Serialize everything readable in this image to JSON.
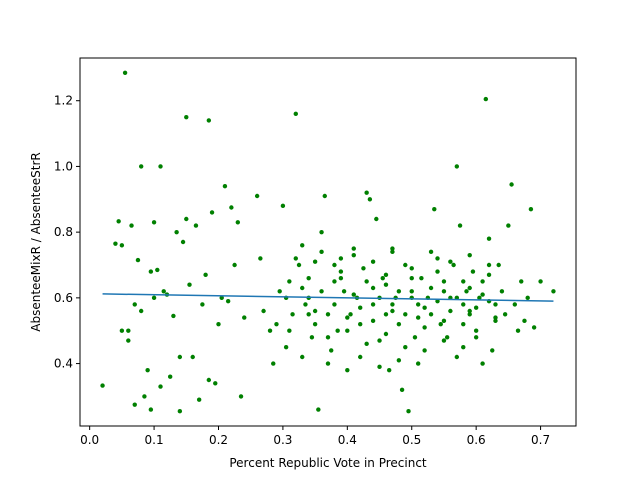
{
  "chart_data": {
    "type": "scatter",
    "xlabel": "Percent Republic Vote in Precinct",
    "ylabel": "AbsenteeMixR / AbsenteeStrR",
    "xlim": [
      -0.015,
      0.755
    ],
    "ylim": [
      0.21,
      1.33
    ],
    "xticks": [
      "0.0",
      "0.1",
      "0.2",
      "0.3",
      "0.4",
      "0.5",
      "0.6",
      "0.7"
    ],
    "yticks": [
      "0.4",
      "0.6",
      "0.8",
      "1.0",
      "1.2"
    ],
    "grid": false,
    "legend": "none",
    "colors": {
      "points": "#008000",
      "fit_line": "#1f77b4"
    },
    "trend_line": {
      "x": [
        0.02,
        0.72
      ],
      "y": [
        0.612,
        0.59
      ]
    },
    "series": [
      {
        "values": [
          [
            0.02,
            0.333
          ],
          [
            0.04,
            0.765
          ],
          [
            0.045,
            0.833
          ],
          [
            0.05,
            0.76
          ],
          [
            0.05,
            0.5
          ],
          [
            0.055,
            1.285
          ],
          [
            0.06,
            0.47
          ],
          [
            0.06,
            0.5
          ],
          [
            0.065,
            0.82
          ],
          [
            0.07,
            0.275
          ],
          [
            0.07,
            0.58
          ],
          [
            0.075,
            0.715
          ],
          [
            0.08,
            1.0
          ],
          [
            0.08,
            0.56
          ],
          [
            0.085,
            0.3
          ],
          [
            0.09,
            0.38
          ],
          [
            0.095,
            0.26
          ],
          [
            0.095,
            0.68
          ],
          [
            0.1,
            0.83
          ],
          [
            0.1,
            0.6
          ],
          [
            0.105,
            0.685
          ],
          [
            0.11,
            1.0
          ],
          [
            0.11,
            0.33
          ],
          [
            0.115,
            0.62
          ],
          [
            0.12,
            0.61
          ],
          [
            0.125,
            0.36
          ],
          [
            0.13,
            0.545
          ],
          [
            0.135,
            0.8
          ],
          [
            0.14,
            0.255
          ],
          [
            0.14,
            0.42
          ],
          [
            0.145,
            0.77
          ],
          [
            0.15,
            1.15
          ],
          [
            0.15,
            0.84
          ],
          [
            0.155,
            0.64
          ],
          [
            0.16,
            0.42
          ],
          [
            0.165,
            0.82
          ],
          [
            0.17,
            0.29
          ],
          [
            0.175,
            0.58
          ],
          [
            0.18,
            0.67
          ],
          [
            0.185,
            1.14
          ],
          [
            0.185,
            0.35
          ],
          [
            0.19,
            0.86
          ],
          [
            0.195,
            0.34
          ],
          [
            0.2,
            0.52
          ],
          [
            0.205,
            0.6
          ],
          [
            0.21,
            0.94
          ],
          [
            0.215,
            0.59
          ],
          [
            0.22,
            0.875
          ],
          [
            0.225,
            0.7
          ],
          [
            0.23,
            0.83
          ],
          [
            0.235,
            0.3
          ],
          [
            0.24,
            0.54
          ],
          [
            0.26,
            0.91
          ],
          [
            0.265,
            0.72
          ],
          [
            0.27,
            0.56
          ],
          [
            0.28,
            0.5
          ],
          [
            0.285,
            0.4
          ],
          [
            0.29,
            0.52
          ],
          [
            0.295,
            0.62
          ],
          [
            0.3,
            0.88
          ],
          [
            0.305,
            0.45
          ],
          [
            0.31,
            0.65
          ],
          [
            0.315,
            0.55
          ],
          [
            0.32,
            1.16
          ],
          [
            0.325,
            0.7
          ],
          [
            0.33,
            0.76
          ],
          [
            0.335,
            0.58
          ],
          [
            0.34,
            0.6
          ],
          [
            0.345,
            0.48
          ],
          [
            0.35,
            0.71
          ],
          [
            0.355,
            0.26
          ],
          [
            0.36,
            0.8
          ],
          [
            0.365,
            0.91
          ],
          [
            0.37,
            0.55
          ],
          [
            0.375,
            0.44
          ],
          [
            0.38,
            0.65
          ],
          [
            0.385,
            0.5
          ],
          [
            0.39,
            0.72
          ],
          [
            0.395,
            0.62
          ],
          [
            0.4,
            0.38
          ],
          [
            0.405,
            0.55
          ],
          [
            0.41,
            0.75
          ],
          [
            0.415,
            0.6
          ],
          [
            0.42,
            0.52
          ],
          [
            0.425,
            0.69
          ],
          [
            0.43,
            0.92
          ],
          [
            0.435,
            0.9
          ],
          [
            0.44,
            0.58
          ],
          [
            0.445,
            0.84
          ],
          [
            0.45,
            0.47
          ],
          [
            0.455,
            0.66
          ],
          [
            0.46,
            0.55
          ],
          [
            0.465,
            0.38
          ],
          [
            0.47,
            0.74
          ],
          [
            0.475,
            0.6
          ],
          [
            0.48,
            0.52
          ],
          [
            0.485,
            0.32
          ],
          [
            0.49,
            0.7
          ],
          [
            0.495,
            0.255
          ],
          [
            0.5,
            0.62
          ],
          [
            0.505,
            0.48
          ],
          [
            0.51,
            0.58
          ],
          [
            0.515,
            0.66
          ],
          [
            0.52,
            0.44
          ],
          [
            0.525,
            0.6
          ],
          [
            0.53,
            0.55
          ],
          [
            0.535,
            0.87
          ],
          [
            0.54,
            0.72
          ],
          [
            0.545,
            0.52
          ],
          [
            0.55,
            0.65
          ],
          [
            0.555,
            0.48
          ],
          [
            0.56,
            0.6
          ],
          [
            0.565,
            0.7
          ],
          [
            0.57,
            1.0
          ],
          [
            0.575,
            0.82
          ],
          [
            0.58,
            0.45
          ],
          [
            0.585,
            0.62
          ],
          [
            0.59,
            0.55
          ],
          [
            0.595,
            0.68
          ],
          [
            0.6,
            0.5
          ],
          [
            0.605,
            0.6
          ],
          [
            0.61,
            0.65
          ],
          [
            0.615,
            1.205
          ],
          [
            0.62,
            0.78
          ],
          [
            0.625,
            0.44
          ],
          [
            0.63,
            0.58
          ],
          [
            0.635,
            0.7
          ],
          [
            0.64,
            0.62
          ],
          [
            0.645,
            0.55
          ],
          [
            0.65,
            0.82
          ],
          [
            0.655,
            0.945
          ],
          [
            0.66,
            0.58
          ],
          [
            0.665,
            0.5
          ],
          [
            0.67,
            0.65
          ],
          [
            0.675,
            0.53
          ],
          [
            0.68,
            0.6
          ],
          [
            0.685,
            0.87
          ],
          [
            0.69,
            0.51
          ],
          [
            0.7,
            0.65
          ],
          [
            0.72,
            0.62
          ],
          [
            0.305,
            0.6
          ],
          [
            0.33,
            0.63
          ],
          [
            0.34,
            0.55
          ],
          [
            0.36,
            0.62
          ],
          [
            0.38,
            0.58
          ],
          [
            0.39,
            0.66
          ],
          [
            0.41,
            0.61
          ],
          [
            0.42,
            0.57
          ],
          [
            0.44,
            0.63
          ],
          [
            0.45,
            0.6
          ],
          [
            0.46,
            0.64
          ],
          [
            0.47,
            0.58
          ],
          [
            0.48,
            0.62
          ],
          [
            0.49,
            0.55
          ],
          [
            0.5,
            0.6
          ],
          [
            0.52,
            0.57
          ],
          [
            0.53,
            0.63
          ],
          [
            0.54,
            0.59
          ],
          [
            0.55,
            0.62
          ],
          [
            0.56,
            0.56
          ],
          [
            0.57,
            0.6
          ],
          [
            0.58,
            0.58
          ],
          [
            0.59,
            0.63
          ],
          [
            0.6,
            0.57
          ],
          [
            0.61,
            0.61
          ],
          [
            0.62,
            0.59
          ],
          [
            0.31,
            0.5
          ],
          [
            0.35,
            0.52
          ],
          [
            0.37,
            0.48
          ],
          [
            0.4,
            0.5
          ],
          [
            0.43,
            0.46
          ],
          [
            0.46,
            0.49
          ],
          [
            0.49,
            0.45
          ],
          [
            0.52,
            0.51
          ],
          [
            0.55,
            0.47
          ],
          [
            0.58,
            0.52
          ],
          [
            0.6,
            0.48
          ],
          [
            0.63,
            0.53
          ],
          [
            0.32,
            0.72
          ],
          [
            0.36,
            0.74
          ],
          [
            0.38,
            0.7
          ],
          [
            0.41,
            0.73
          ],
          [
            0.44,
            0.71
          ],
          [
            0.47,
            0.75
          ],
          [
            0.5,
            0.69
          ],
          [
            0.53,
            0.74
          ],
          [
            0.56,
            0.71
          ],
          [
            0.59,
            0.73
          ],
          [
            0.62,
            0.7
          ],
          [
            0.33,
            0.42
          ],
          [
            0.37,
            0.4
          ],
          [
            0.42,
            0.42
          ],
          [
            0.45,
            0.39
          ],
          [
            0.48,
            0.41
          ],
          [
            0.51,
            0.4
          ],
          [
            0.57,
            0.42
          ],
          [
            0.61,
            0.4
          ],
          [
            0.34,
            0.66
          ],
          [
            0.39,
            0.68
          ],
          [
            0.43,
            0.65
          ],
          [
            0.46,
            0.67
          ],
          [
            0.5,
            0.66
          ],
          [
            0.54,
            0.68
          ],
          [
            0.58,
            0.65
          ],
          [
            0.62,
            0.67
          ],
          [
            0.35,
            0.56
          ],
          [
            0.4,
            0.54
          ],
          [
            0.44,
            0.53
          ],
          [
            0.47,
            0.56
          ],
          [
            0.51,
            0.54
          ],
          [
            0.55,
            0.53
          ],
          [
            0.59,
            0.56
          ],
          [
            0.63,
            0.54
          ]
        ]
      }
    ]
  }
}
